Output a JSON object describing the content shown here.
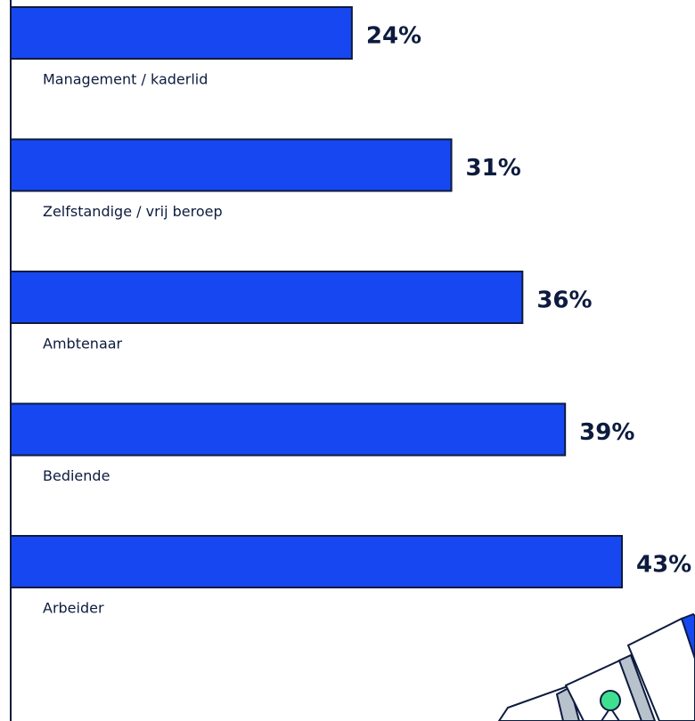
{
  "chart_data": {
    "type": "bar",
    "orientation": "horizontal",
    "categories": [
      "Management / kaderlid",
      "Zelfstandige / vrij beroep",
      "Ambtenaar",
      "Bediende",
      "Arbeider"
    ],
    "values": [
      24,
      31,
      36,
      39,
      43
    ],
    "value_labels": [
      "24%",
      "31%",
      "36%",
      "39%",
      "43%"
    ],
    "color": "#1747f0"
  }
}
